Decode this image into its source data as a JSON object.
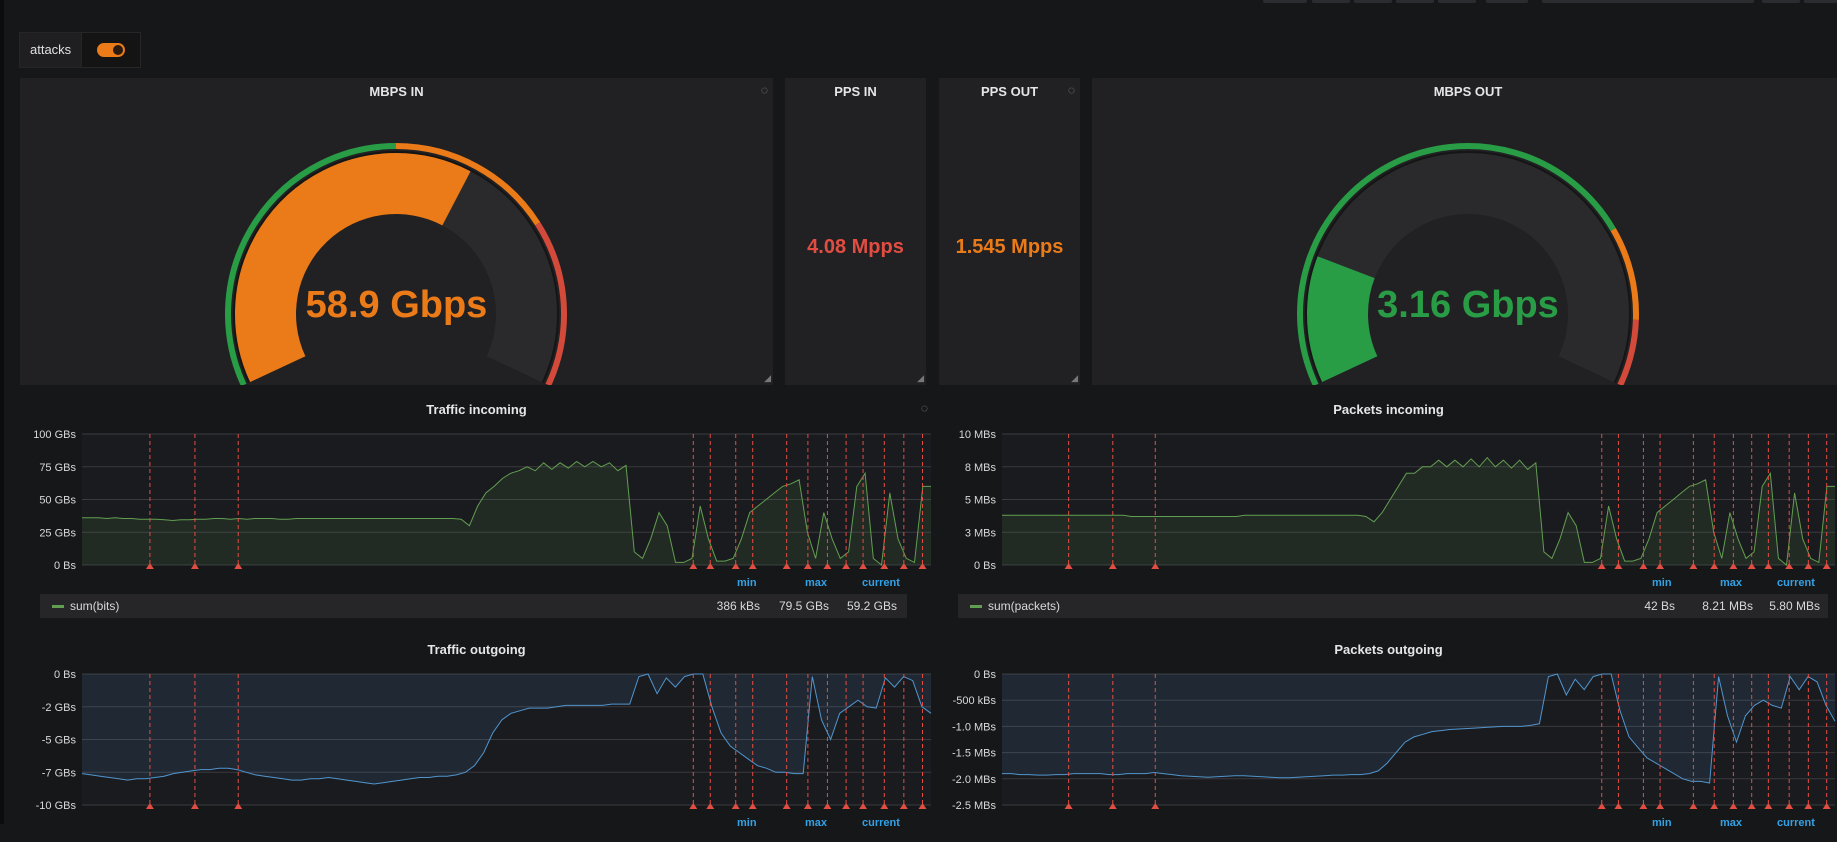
{
  "variable": {
    "label": "attacks",
    "toggle_on": true
  },
  "colors": {
    "orange": "#eb7b18",
    "green": "#299c46",
    "red": "#d44a3a",
    "series_green": "#629e51",
    "series_blue": "#5195ce",
    "annotation_red": "#e24d42",
    "legend_header": "#33a2e5"
  },
  "singlestats": [
    {
      "title": "MBPS IN",
      "type": "gauge",
      "value": "58.9 Gbps",
      "fill_fraction": 0.62,
      "color": "#eb7b18"
    },
    {
      "title": "PPS IN",
      "type": "stat",
      "value": "4.08 Mpps",
      "color": "#e24d42"
    },
    {
      "title": "PPS OUT",
      "type": "stat",
      "value": "1.545 Mpps",
      "color": "#eb7b18"
    },
    {
      "title": "MBPS OUT",
      "type": "gauge",
      "value": "3.16 Gbps",
      "fill_fraction": 0.2,
      "color": "#299c46"
    }
  ],
  "legend_headers": {
    "min": "min",
    "max": "max",
    "current": "current"
  },
  "chart_data": [
    {
      "type": "area",
      "title": "Traffic incoming",
      "ytick_labels": [
        "100 GBs",
        "75 GBs",
        "50 GBs",
        "25 GBs",
        "0 Bs"
      ],
      "ylim": [
        0,
        100
      ],
      "y_unit": "GBs",
      "series": [
        {
          "name": "sum(bits)",
          "min": "386 kBs",
          "max": "79.5 GBs",
          "current": "59.2 GBs"
        }
      ],
      "shape": [
        36,
        36,
        36,
        35.5,
        36,
        35.5,
        35.5,
        35,
        35,
        35,
        34.5,
        34,
        34.5,
        34.5,
        35,
        35,
        35.5,
        35.5,
        35,
        35.5,
        35,
        35.5,
        35.5,
        35.5,
        35,
        35,
        35.5,
        35.5,
        35.5,
        35.5,
        35.5,
        35.5,
        35.5,
        35.5,
        35.5,
        35.5,
        35.5,
        35.5,
        35.5,
        35.5,
        35.5,
        35.5,
        35.5,
        35.5,
        35.5,
        35.5,
        35,
        30,
        45,
        55,
        60,
        66,
        70,
        72,
        75,
        72,
        78,
        73,
        78,
        74,
        79,
        75,
        79,
        75,
        78,
        72,
        76,
        10,
        5,
        20,
        40,
        30,
        2,
        2,
        5,
        45,
        20,
        3,
        3,
        5,
        20,
        40,
        45,
        50,
        55,
        60,
        62,
        65,
        25,
        5,
        40,
        20,
        5,
        10,
        60,
        70,
        5,
        0,
        55,
        20,
        5,
        2,
        60,
        60
      ],
      "annotations": [
        0.08,
        0.133,
        0.184,
        0.72,
        0.74,
        0.77,
        0.79,
        0.83,
        0.855,
        0.878,
        0.9,
        0.92,
        0.945,
        0.968,
        0.99
      ]
    },
    {
      "type": "area",
      "title": "Packets incoming",
      "ytick_labels": [
        "10 MBs",
        "8 MBs",
        "5 MBs",
        "3 MBs",
        "0 Bs"
      ],
      "ylim": [
        0,
        10
      ],
      "y_unit": "MBs",
      "series": [
        {
          "name": "sum(packets)",
          "min": "42 Bs",
          "max": "8.21 MBs",
          "current": "5.80 MBs"
        }
      ],
      "shape": [
        3.8,
        3.8,
        3.8,
        3.8,
        3.8,
        3.8,
        3.8,
        3.8,
        3.8,
        3.8,
        3.8,
        3.8,
        3.8,
        3.8,
        3.8,
        3.8,
        3.7,
        3.7,
        3.7,
        3.7,
        3.7,
        3.7,
        3.7,
        3.7,
        3.7,
        3.7,
        3.7,
        3.7,
        3.7,
        3.7,
        3.8,
        3.8,
        3.8,
        3.8,
        3.8,
        3.8,
        3.8,
        3.8,
        3.8,
        3.8,
        3.8,
        3.8,
        3.8,
        3.8,
        3.8,
        3.7,
        3.3,
        4,
        5,
        6,
        7,
        7,
        7.5,
        7.5,
        8,
        7.5,
        8,
        7.5,
        8.1,
        7.5,
        8.2,
        7.5,
        8,
        7.4,
        8,
        7.3,
        7.8,
        1,
        0.5,
        2,
        4,
        3,
        0.2,
        0.2,
        0.5,
        4.5,
        2,
        0.3,
        0.3,
        0.5,
        2,
        4,
        4.5,
        5,
        5.5,
        6,
        6.2,
        6.5,
        2.5,
        0.5,
        4,
        2,
        0.5,
        1,
        6,
        7,
        0.5,
        0,
        5.5,
        2,
        0.5,
        0.2,
        6,
        6
      ],
      "annotations": [
        0.08,
        0.133,
        0.184,
        0.72,
        0.74,
        0.77,
        0.79,
        0.83,
        0.855,
        0.878,
        0.9,
        0.92,
        0.945,
        0.968,
        0.99
      ]
    },
    {
      "type": "area",
      "title": "Traffic outgoing",
      "ytick_labels": [
        "0 Bs",
        "-2 GBs",
        "-5 GBs",
        "-7 GBs",
        "-10 GBs"
      ],
      "ylim": [
        -10,
        0
      ],
      "y_unit": "GBs",
      "series": [
        {
          "name": "",
          "min": "",
          "max": "",
          "current": ""
        }
      ],
      "shape": [
        -7.6,
        -7.7,
        -7.8,
        -7.9,
        -8.0,
        -8.1,
        -8.0,
        -8.0,
        -7.9,
        -7.8,
        -7.6,
        -7.5,
        -7.4,
        -7.3,
        -7.3,
        -7.2,
        -7.2,
        -7.3,
        -7.5,
        -7.7,
        -7.8,
        -7.9,
        -8.0,
        -8.1,
        -8.1,
        -8.0,
        -8.0,
        -7.9,
        -8.0,
        -8.1,
        -8.2,
        -8.3,
        -8.4,
        -8.3,
        -8.2,
        -8.1,
        -8.0,
        -7.9,
        -7.9,
        -7.8,
        -7.8,
        -7.7,
        -7.5,
        -7.0,
        -6.0,
        -4.5,
        -3.5,
        -3.0,
        -2.8,
        -2.6,
        -2.6,
        -2.6,
        -2.5,
        -2.4,
        -2.4,
        -2.4,
        -2.4,
        -2.4,
        -2.3,
        -2.3,
        -2.3,
        -0.2,
        0,
        -1.5,
        -0.3,
        -1.0,
        -0.2,
        0,
        0,
        -2.5,
        -4.5,
        -5.5,
        -6.0,
        -6.5,
        -7.0,
        -7.2,
        -7.5,
        -7.5,
        -7.6,
        -7.6,
        -0.2,
        -3.5,
        -5.0,
        -3.0,
        -2.5,
        -2.0,
        -2.5,
        -2.6,
        -0.3,
        -1.0,
        -0.2,
        -0.5,
        -2.5,
        -3.0
      ],
      "annotations": [
        0.08,
        0.133,
        0.184,
        0.72,
        0.74,
        0.77,
        0.79,
        0.83,
        0.855,
        0.878,
        0.9,
        0.92,
        0.945,
        0.968,
        0.99
      ]
    },
    {
      "type": "area",
      "title": "Packets outgoing",
      "ytick_labels": [
        "0 Bs",
        "-500 kBs",
        "-1.0 MBs",
        "-1.5 MBs",
        "-2.0 MBs",
        "-2.5 MBs"
      ],
      "ylim": [
        -2.5,
        0
      ],
      "y_unit": "MBs",
      "series": [
        {
          "name": "",
          "min": "",
          "max": "",
          "current": ""
        }
      ],
      "shape": [
        -1.9,
        -1.9,
        -1.92,
        -1.92,
        -1.93,
        -1.93,
        -1.92,
        -1.92,
        -1.9,
        -1.9,
        -1.9,
        -1.9,
        -1.92,
        -1.92,
        -1.9,
        -1.9,
        -1.9,
        -1.88,
        -1.9,
        -1.92,
        -1.94,
        -1.95,
        -1.96,
        -1.97,
        -1.96,
        -1.95,
        -1.94,
        -1.94,
        -1.95,
        -1.96,
        -1.97,
        -1.98,
        -1.98,
        -1.97,
        -1.96,
        -1.95,
        -1.94,
        -1.93,
        -1.93,
        -1.92,
        -1.92,
        -1.9,
        -1.85,
        -1.7,
        -1.5,
        -1.3,
        -1.2,
        -1.15,
        -1.1,
        -1.08,
        -1.06,
        -1.05,
        -1.04,
        -1.03,
        -1.02,
        -1.01,
        -1.0,
        -1.0,
        -1.0,
        -0.98,
        -0.95,
        -0.05,
        0,
        -0.4,
        -0.1,
        -0.3,
        -0.05,
        0,
        0,
        -0.7,
        -1.2,
        -1.4,
        -1.6,
        -1.7,
        -1.8,
        -1.9,
        -2.0,
        -2.05,
        -2.05,
        -2.08,
        -0.05,
        -0.8,
        -1.3,
        -0.8,
        -0.6,
        -0.5,
        -0.6,
        -0.65,
        -0.05,
        -0.3,
        -0.05,
        -0.15,
        -0.6,
        -0.9
      ],
      "annotations": [
        0.08,
        0.133,
        0.184,
        0.72,
        0.74,
        0.77,
        0.79,
        0.83,
        0.855,
        0.878,
        0.9,
        0.92,
        0.945,
        0.968,
        0.99
      ]
    }
  ]
}
